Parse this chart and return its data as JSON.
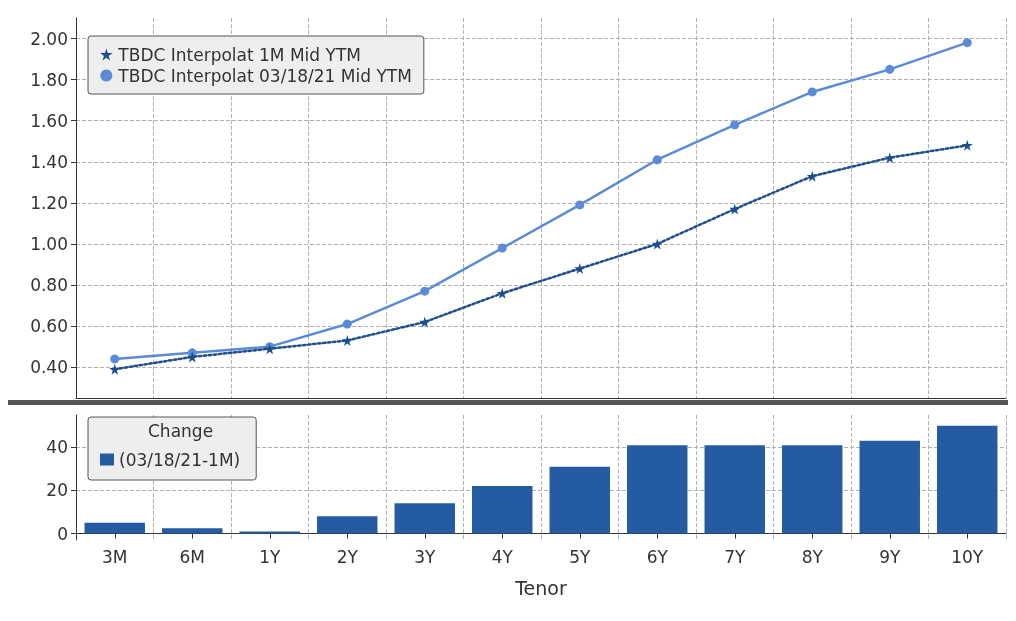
{
  "chart_data": [
    {
      "type": "line",
      "categories": [
        null,
        null,
        null,
        null,
        null,
        null,
        null,
        null,
        null,
        null,
        null,
        null
      ],
      "series": [
        {
          "name": "TBDC Interpolat 1M Mid YTM",
          "color": "#1f4e8c",
          "marker": "star",
          "line_style": "dotted",
          "values": [
            0.39,
            0.45,
            0.49,
            0.53,
            0.62,
            0.76,
            0.88,
            1.0,
            1.17,
            1.33,
            1.42,
            1.48
          ]
        },
        {
          "name": "TBDC Interpolat 03/18/21 Mid YTM",
          "color": "#5b8bd6",
          "marker": "circle",
          "line_style": "solid",
          "values": [
            0.44,
            0.47,
            0.5,
            0.61,
            0.77,
            0.98,
            1.19,
            1.41,
            1.58,
            1.74,
            1.85,
            1.98
          ]
        }
      ],
      "ylim": [
        0.25,
        2.1
      ],
      "yticks": [
        {
          "value": 0.4,
          "label": "0.40"
        },
        {
          "value": 0.6,
          "label": "0.60"
        },
        {
          "value": 0.8,
          "label": "0.80"
        },
        {
          "value": 1.0,
          "label": "1.00"
        },
        {
          "value": 1.2,
          "label": "1.20"
        },
        {
          "value": 1.4,
          "label": "1.40"
        },
        {
          "value": 1.6,
          "label": "1.60"
        },
        {
          "value": 1.8,
          "label": "1.80"
        },
        {
          "value": 2.0,
          "label": "2.00"
        }
      ],
      "grid": true,
      "legend": "top left"
    },
    {
      "type": "bar",
      "categories": [
        "3M",
        "6M",
        "1Y",
        "2Y",
        "3Y",
        "4Y",
        "5Y",
        "6Y",
        "7Y",
        "8Y",
        "9Y",
        "10Y"
      ],
      "legend_title": "Change",
      "series": [
        {
          "name": "(03/18/21-1M)",
          "color": "#255ba0",
          "values": [
            5,
            2.5,
            1,
            8,
            14,
            22,
            31,
            41,
            41,
            41,
            43,
            50
          ]
        }
      ],
      "ylim": [
        -3,
        55
      ],
      "yticks": [
        0,
        20,
        40
      ],
      "xlabel": "Tenor",
      "grid": true,
      "legend": "top left"
    }
  ]
}
